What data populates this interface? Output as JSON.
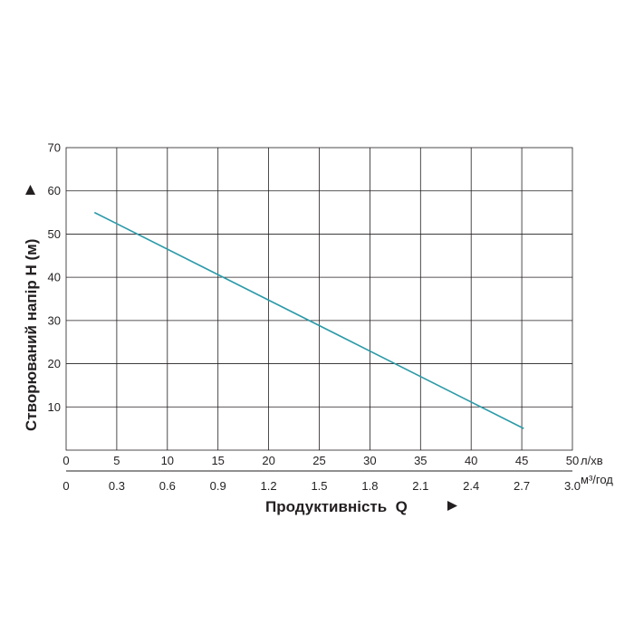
{
  "chart_data": {
    "type": "line",
    "ylabel": "Створюваний напір H (м)",
    "xlabel": "Продуктивність  Q",
    "x_unit_primary": "л/хв",
    "x_unit_secondary": "м³/год",
    "ylim": [
      0,
      70
    ],
    "xlim": [
      0,
      50
    ],
    "y_ticks": [
      "10",
      "20",
      "30",
      "40",
      "50",
      "60",
      "70"
    ],
    "x_ticks_primary": [
      "0",
      "5",
      "10",
      "15",
      "20",
      "25",
      "30",
      "35",
      "40",
      "45",
      "50"
    ],
    "x_ticks_secondary": [
      "0",
      "0.3",
      "0.6",
      "0.9",
      "1.2",
      "1.5",
      "1.8",
      "2.1",
      "2.4",
      "2.7",
      "3.0"
    ],
    "grid": true,
    "line_color": "#2b9aa8",
    "series": [
      {
        "x": [
          2.8,
          45.2
        ],
        "y": [
          55,
          5
        ]
      }
    ]
  }
}
